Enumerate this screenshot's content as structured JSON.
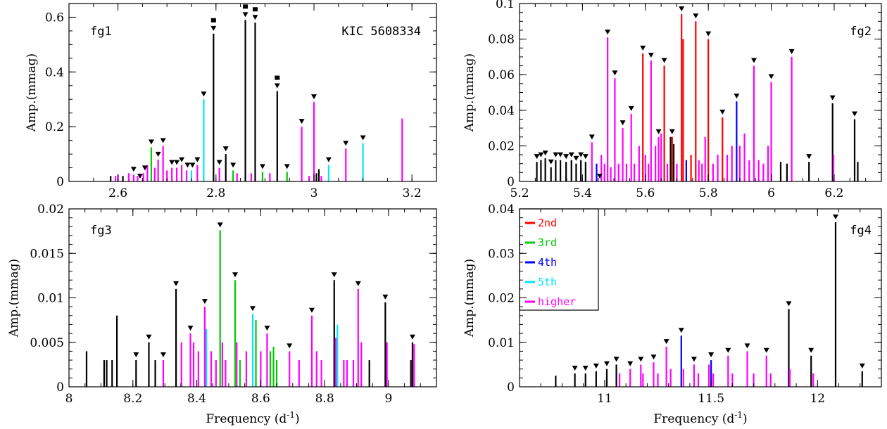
{
  "colors": {
    "base": "#000000",
    "2nd": "#ff0000",
    "3rd": "#00cc00",
    "4th": "#0000ff",
    "5th": "#00e5ff",
    "higher": "#ff00ff"
  },
  "legend": {
    "panel": 3,
    "entries": [
      {
        "label": "2nd",
        "key": "2nd"
      },
      {
        "label": "3rd",
        "key": "3rd"
      },
      {
        "label": "4th",
        "key": "4th"
      },
      {
        "label": "5th",
        "key": "5th"
      },
      {
        "label": "higher",
        "key": "higher"
      }
    ]
  },
  "chart_data": [
    {
      "type": "bar",
      "name": "fg1",
      "label": "fg1",
      "annotation": "KIC 5608334",
      "ylabel": "Amp.(mmag)",
      "xlabel": "",
      "xlim": [
        2.5,
        3.25
      ],
      "ylim": [
        0,
        0.65
      ],
      "xticks": [
        2.6,
        2.8,
        3,
        3.2
      ],
      "yticks": [
        0,
        0.2,
        0.4,
        0.6
      ],
      "xminor": 0.05,
      "yminor": 0.05,
      "lines": [
        [
          2.585,
          0.02,
          "base"
        ],
        [
          2.595,
          0.02,
          "higher"
        ],
        [
          2.6,
          0.025,
          "higher"
        ],
        [
          2.61,
          0.02,
          "base"
        ],
        [
          2.622,
          0.03,
          "higher"
        ],
        [
          2.632,
          0.025,
          "higher"
        ],
        [
          2.64,
          0.02,
          "higher"
        ],
        [
          2.652,
          0.03,
          "higher"
        ],
        [
          2.66,
          0.06,
          "higher"
        ],
        [
          2.668,
          0.125,
          "3rd"
        ],
        [
          2.675,
          0.05,
          "higher"
        ],
        [
          2.682,
          0.08,
          "higher"
        ],
        [
          2.692,
          0.13,
          "higher"
        ],
        [
          2.7,
          0.04,
          "higher"
        ],
        [
          2.71,
          0.05,
          "higher"
        ],
        [
          2.72,
          0.05,
          "higher"
        ],
        [
          2.73,
          0.06,
          "higher"
        ],
        [
          2.74,
          0.04,
          "higher"
        ],
        [
          2.75,
          0.04,
          "5th"
        ],
        [
          2.762,
          0.06,
          "higher"
        ],
        [
          2.775,
          0.3,
          "5th"
        ],
        [
          2.795,
          0.54,
          "base"
        ],
        [
          2.807,
          0.05,
          "higher"
        ],
        [
          2.82,
          0.1,
          "base"
        ],
        [
          2.835,
          0.04,
          "3rd"
        ],
        [
          2.843,
          0.03,
          "higher"
        ],
        [
          2.86,
          0.59,
          "base"
        ],
        [
          2.872,
          0.03,
          "higher"
        ],
        [
          2.88,
          0.58,
          "base"
        ],
        [
          2.895,
          0.035,
          "3rd"
        ],
        [
          2.91,
          0.03,
          "higher"
        ],
        [
          2.925,
          0.33,
          "base"
        ],
        [
          2.945,
          0.035,
          "3rd"
        ],
        [
          2.975,
          0.2,
          "higher"
        ],
        [
          2.99,
          0.02,
          "higher"
        ],
        [
          3.0,
          0.29,
          "higher"
        ],
        [
          3.005,
          0.03,
          "base"
        ],
        [
          3.01,
          0.045,
          "base"
        ],
        [
          3.015,
          0.02,
          "higher"
        ],
        [
          3.03,
          0.06,
          "5th"
        ],
        [
          3.065,
          0.12,
          "higher"
        ],
        [
          3.1,
          0.14,
          "5th"
        ],
        [
          3.18,
          0.23,
          "higher"
        ]
      ],
      "triangles": [
        2.632,
        2.645,
        2.655,
        2.668,
        2.682,
        2.692,
        2.71,
        2.72,
        2.73,
        2.742,
        2.752,
        2.762,
        2.775,
        2.795,
        2.807,
        2.82,
        2.835,
        2.86,
        2.88,
        2.895,
        2.925,
        2.945,
        2.975,
        3.0,
        3.03,
        3.065,
        3.1
      ],
      "squares": [
        2.795,
        2.86,
        2.88,
        2.925
      ]
    },
    {
      "type": "bar",
      "name": "fg2",
      "label": "fg2",
      "ylabel": "Amp.(mmag)",
      "xlabel": "",
      "xlim": [
        5.2,
        6.35
      ],
      "ylim": [
        0,
        0.1
      ],
      "xticks": [
        5.2,
        5.4,
        5.6,
        5.8,
        6,
        6.2
      ],
      "yticks": [
        0,
        0.02,
        0.04,
        0.06,
        0.08,
        0.1
      ],
      "xminor": 0.05,
      "yminor": 0.005,
      "lines": [
        [
          5.255,
          0.011,
          "base"
        ],
        [
          5.268,
          0.012,
          "base"
        ],
        [
          5.282,
          0.013,
          "base"
        ],
        [
          5.3,
          0.008,
          "base"
        ],
        [
          5.315,
          0.012,
          "base"
        ],
        [
          5.33,
          0.012,
          "base"
        ],
        [
          5.348,
          0.011,
          "base"
        ],
        [
          5.365,
          0.012,
          "base"
        ],
        [
          5.38,
          0.01,
          "base"
        ],
        [
          5.395,
          0.012,
          "base"
        ],
        [
          5.41,
          0.011,
          "base"
        ],
        [
          5.43,
          0.022,
          "higher"
        ],
        [
          5.445,
          0.01,
          "4th"
        ],
        [
          5.46,
          0.015,
          "higher"
        ],
        [
          5.47,
          0.01,
          "higher"
        ],
        [
          5.48,
          0.081,
          "higher"
        ],
        [
          5.49,
          0.008,
          "higher"
        ],
        [
          5.503,
          0.058,
          "higher"
        ],
        [
          5.515,
          0.01,
          "higher"
        ],
        [
          5.528,
          0.03,
          "higher"
        ],
        [
          5.54,
          0.01,
          "higher"
        ],
        [
          5.555,
          0.038,
          "higher"
        ],
        [
          5.565,
          0.01,
          "higher"
        ],
        [
          5.58,
          0.02,
          "higher"
        ],
        [
          5.592,
          0.072,
          "2nd"
        ],
        [
          5.6,
          0.015,
          "higher"
        ],
        [
          5.61,
          0.01,
          "higher"
        ],
        [
          5.618,
          0.068,
          "higher"
        ],
        [
          5.632,
          0.02,
          "higher"
        ],
        [
          5.642,
          0.025,
          "higher"
        ],
        [
          5.65,
          0.027,
          "higher"
        ],
        [
          5.66,
          0.065,
          "2nd"
        ],
        [
          5.67,
          0.01,
          "higher"
        ],
        [
          5.68,
          0.025,
          "base"
        ],
        [
          5.685,
          0.025,
          "2nd"
        ],
        [
          5.69,
          0.021,
          "base"
        ],
        [
          5.7,
          0.01,
          "higher"
        ],
        [
          5.715,
          0.094,
          "2nd"
        ],
        [
          5.72,
          0.08,
          "2nd"
        ],
        [
          5.73,
          0.012,
          "4th"
        ],
        [
          5.745,
          0.015,
          "2nd"
        ],
        [
          5.76,
          0.09,
          "2nd"
        ],
        [
          5.77,
          0.012,
          "higher"
        ],
        [
          5.78,
          0.01,
          "higher"
        ],
        [
          5.79,
          0.025,
          "higher"
        ],
        [
          5.8,
          0.08,
          "2nd"
        ],
        [
          5.815,
          0.01,
          "higher"
        ],
        [
          5.83,
          0.015,
          "higher"
        ],
        [
          5.845,
          0.036,
          "2nd"
        ],
        [
          5.86,
          0.015,
          "higher"
        ],
        [
          5.875,
          0.02,
          "higher"
        ],
        [
          5.89,
          0.045,
          "4th"
        ],
        [
          5.9,
          0.02,
          "higher"
        ],
        [
          5.915,
          0.027,
          "higher"
        ],
        [
          5.93,
          0.012,
          "higher"
        ],
        [
          5.945,
          0.065,
          "higher"
        ],
        [
          5.96,
          0.012,
          "higher"
        ],
        [
          5.975,
          0.01,
          "higher"
        ],
        [
          5.99,
          0.02,
          "higher"
        ],
        [
          6.0,
          0.056,
          "higher"
        ],
        [
          6.03,
          0.011,
          "base"
        ],
        [
          6.05,
          0.01,
          "base"
        ],
        [
          6.065,
          0.07,
          "higher"
        ],
        [
          6.12,
          0.011,
          "base"
        ],
        [
          6.195,
          0.044,
          "base"
        ],
        [
          6.198,
          0.015,
          "higher"
        ],
        [
          6.265,
          0.035,
          "base"
        ],
        [
          6.275,
          0.011,
          "base"
        ]
      ],
      "triangles": [
        5.255,
        5.268,
        5.282,
        5.3,
        5.315,
        5.33,
        5.348,
        5.365,
        5.38,
        5.395,
        5.41,
        5.43,
        5.455,
        5.48,
        5.503,
        5.528,
        5.555,
        5.592,
        5.618,
        5.642,
        5.66,
        5.685,
        5.715,
        5.76,
        5.8,
        5.845,
        5.89,
        5.945,
        6.0,
        6.065,
        6.12,
        6.195,
        6.265
      ],
      "squares": []
    },
    {
      "type": "bar",
      "name": "fg3",
      "label": "fg3",
      "ylabel": "Amp.(mmag)",
      "xlabel": "Frequency (d",
      "xlabel_sup": "-1",
      "xlabel_tail": ")",
      "xlim": [
        8.0,
        9.15
      ],
      "ylim": [
        0,
        0.02
      ],
      "xticks": [
        8,
        8.2,
        8.4,
        8.6,
        8.8,
        9
      ],
      "yticks": [
        0,
        0.005,
        0.01,
        0.015,
        0.02
      ],
      "xminor": 0.05,
      "yminor": 0.001,
      "lines": [
        [
          8.055,
          0.004,
          "base"
        ],
        [
          8.11,
          0.003,
          "base"
        ],
        [
          8.118,
          0.003,
          "base"
        ],
        [
          8.135,
          0.003,
          "base"
        ],
        [
          8.15,
          0.008,
          "base"
        ],
        [
          8.21,
          0.003,
          "base"
        ],
        [
          8.25,
          0.005,
          "base"
        ],
        [
          8.27,
          0.003,
          "base"
        ],
        [
          8.295,
          0.003,
          "higher"
        ],
        [
          8.335,
          0.011,
          "base"
        ],
        [
          8.352,
          0.005,
          "higher"
        ],
        [
          8.38,
          0.006,
          "higher"
        ],
        [
          8.39,
          0.005,
          "higher"
        ],
        [
          8.405,
          0.004,
          "higher"
        ],
        [
          8.425,
          0.009,
          "higher"
        ],
        [
          8.43,
          0.0065,
          "5th"
        ],
        [
          8.445,
          0.004,
          "higher"
        ],
        [
          8.46,
          0.003,
          "higher"
        ],
        [
          8.473,
          0.0176,
          "3rd"
        ],
        [
          8.48,
          0.005,
          "higher"
        ],
        [
          8.49,
          0.003,
          "higher"
        ],
        [
          8.52,
          0.012,
          "3rd"
        ],
        [
          8.525,
          0.005,
          "higher"
        ],
        [
          8.535,
          0.003,
          "3rd"
        ],
        [
          8.555,
          0.004,
          "higher"
        ],
        [
          8.575,
          0.0082,
          "5th"
        ],
        [
          8.585,
          0.0075,
          "3rd"
        ],
        [
          8.6,
          0.004,
          "higher"
        ],
        [
          8.62,
          0.006,
          "higher"
        ],
        [
          8.63,
          0.004,
          "3rd"
        ],
        [
          8.64,
          0.0045,
          "3rd"
        ],
        [
          8.65,
          0.003,
          "3rd"
        ],
        [
          8.69,
          0.004,
          "higher"
        ],
        [
          8.72,
          0.003,
          "higher"
        ],
        [
          8.76,
          0.008,
          "higher"
        ],
        [
          8.775,
          0.004,
          "higher"
        ],
        [
          8.79,
          0.003,
          "higher"
        ],
        [
          8.83,
          0.012,
          "base"
        ],
        [
          8.835,
          0.0055,
          "higher"
        ],
        [
          8.84,
          0.007,
          "5th"
        ],
        [
          8.86,
          0.003,
          "higher"
        ],
        [
          8.87,
          0.003,
          "higher"
        ],
        [
          8.89,
          0.003,
          "higher"
        ],
        [
          8.905,
          0.011,
          "higher"
        ],
        [
          8.915,
          0.005,
          "higher"
        ],
        [
          8.94,
          0.003,
          "base"
        ],
        [
          8.99,
          0.0095,
          "base"
        ],
        [
          8.995,
          0.005,
          "higher"
        ],
        [
          9.07,
          0.003,
          "base"
        ],
        [
          9.075,
          0.005,
          "base"
        ],
        [
          9.08,
          0.0048,
          "higher"
        ]
      ],
      "triangles": [
        8.21,
        8.25,
        8.295,
        8.335,
        8.38,
        8.425,
        8.473,
        8.52,
        8.575,
        8.62,
        8.69,
        8.76,
        8.83,
        8.905,
        8.99,
        9.075
      ],
      "squares": []
    },
    {
      "type": "bar",
      "name": "fg4",
      "label": "fg4",
      "ylabel": "Amp.(mmag)",
      "xlabel": "Frequency (d",
      "xlabel_sup": "-1",
      "xlabel_tail": ")",
      "xlim": [
        10.6,
        12.3
      ],
      "ylim": [
        0,
        0.04
      ],
      "xticks": [
        11,
        11.5,
        12
      ],
      "yticks": [
        0,
        0.01,
        0.02,
        0.03,
        0.04
      ],
      "xminor": 0.1,
      "yminor": 0.002,
      "lines": [
        [
          10.77,
          0.0025,
          "base"
        ],
        [
          10.86,
          0.003,
          "base"
        ],
        [
          10.91,
          0.003,
          "base"
        ],
        [
          10.96,
          0.0035,
          "base"
        ],
        [
          11.01,
          0.004,
          "base"
        ],
        [
          11.055,
          0.005,
          "base"
        ],
        [
          11.07,
          0.003,
          "higher"
        ],
        [
          11.12,
          0.004,
          "higher"
        ],
        [
          11.17,
          0.005,
          "higher"
        ],
        [
          11.18,
          0.003,
          "higher"
        ],
        [
          11.23,
          0.0055,
          "higher"
        ],
        [
          11.25,
          0.003,
          "higher"
        ],
        [
          11.29,
          0.009,
          "higher"
        ],
        [
          11.31,
          0.004,
          "higher"
        ],
        [
          11.36,
          0.0115,
          "4th"
        ],
        [
          11.37,
          0.004,
          "higher"
        ],
        [
          11.42,
          0.005,
          "higher"
        ],
        [
          11.44,
          0.003,
          "higher"
        ],
        [
          11.49,
          0.005,
          "higher"
        ],
        [
          11.5,
          0.006,
          "4th"
        ],
        [
          11.51,
          0.003,
          "higher"
        ],
        [
          11.58,
          0.007,
          "higher"
        ],
        [
          11.6,
          0.003,
          "higher"
        ],
        [
          11.67,
          0.008,
          "higher"
        ],
        [
          11.7,
          0.003,
          "higher"
        ],
        [
          11.76,
          0.007,
          "higher"
        ],
        [
          11.78,
          0.003,
          "higher"
        ],
        [
          11.865,
          0.0175,
          "base"
        ],
        [
          11.87,
          0.004,
          "higher"
        ],
        [
          11.97,
          0.007,
          "base"
        ],
        [
          11.98,
          0.003,
          "higher"
        ],
        [
          12.085,
          0.037,
          "base"
        ],
        [
          12.21,
          0.0035,
          "base"
        ]
      ],
      "triangles": [
        10.86,
        10.91,
        10.96,
        11.01,
        11.055,
        11.12,
        11.17,
        11.23,
        11.29,
        11.36,
        11.42,
        11.5,
        11.58,
        11.67,
        11.76,
        11.865,
        11.97,
        12.085,
        12.21
      ],
      "squares": []
    }
  ]
}
